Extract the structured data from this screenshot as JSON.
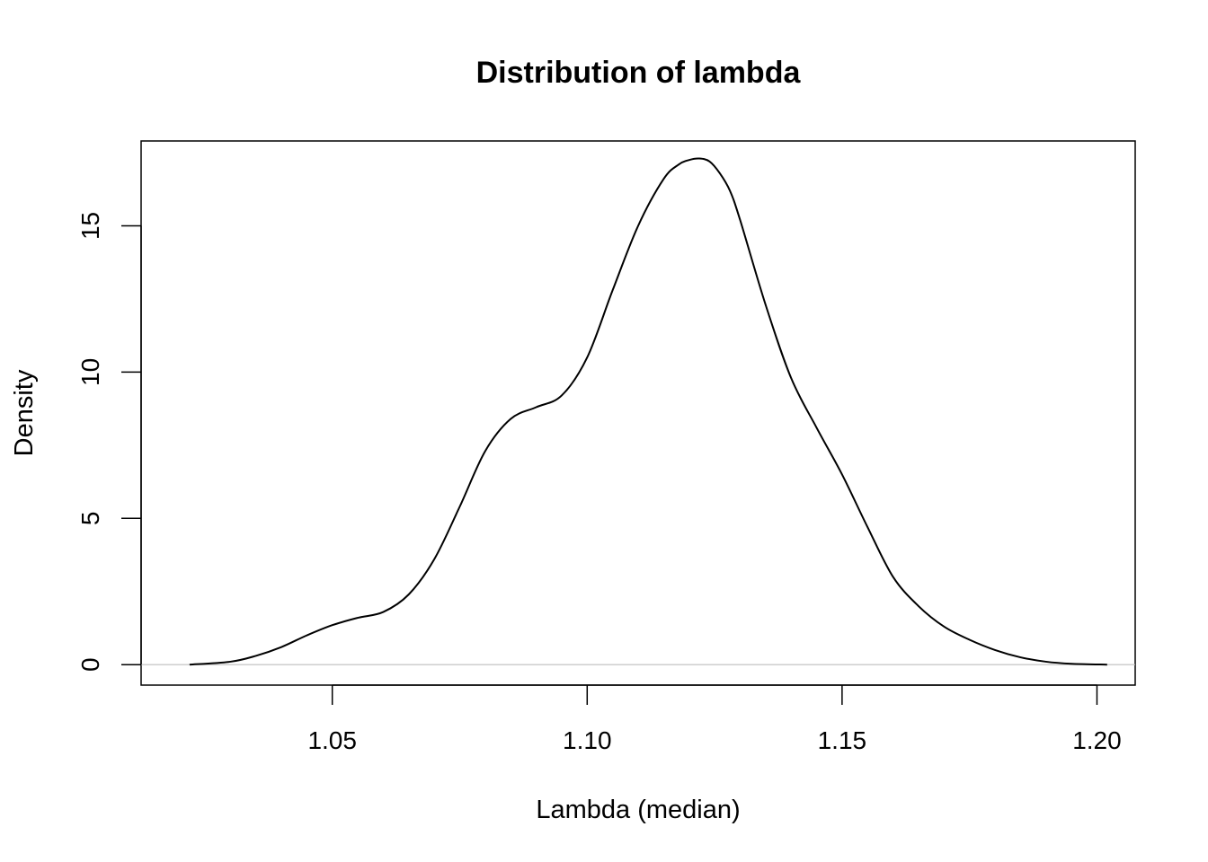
{
  "chart_data": {
    "type": "line",
    "title": "Distribution of lambda",
    "xlabel": "Lambda (median)",
    "ylabel": "Density",
    "xlim": [
      1.0125,
      1.2075
    ],
    "ylim": [
      -0.7,
      17.9
    ],
    "x_ticks": [
      1.05,
      1.1,
      1.15,
      1.2
    ],
    "x_tick_labels": [
      "1.05",
      "1.10",
      "1.15",
      "1.20"
    ],
    "y_ticks": [
      0,
      5,
      10,
      15
    ],
    "y_tick_labels": [
      "0",
      "5",
      "10",
      "15"
    ],
    "grid": false,
    "legend": "none",
    "baseline": 0,
    "series": [
      {
        "x": [
          1.022,
          1.03,
          1.035,
          1.04,
          1.045,
          1.05,
          1.055,
          1.06,
          1.065,
          1.07,
          1.075,
          1.08,
          1.085,
          1.09,
          1.095,
          1.1,
          1.105,
          1.11,
          1.115,
          1.118,
          1.12,
          1.122,
          1.124,
          1.126,
          1.128,
          1.13,
          1.135,
          1.14,
          1.145,
          1.15,
          1.155,
          1.16,
          1.165,
          1.17,
          1.175,
          1.18,
          1.185,
          1.19,
          1.195,
          1.202
        ],
        "y": [
          0.0,
          0.1,
          0.3,
          0.6,
          1.0,
          1.35,
          1.6,
          1.8,
          2.4,
          3.6,
          5.4,
          7.3,
          8.4,
          8.8,
          9.2,
          10.5,
          12.8,
          15.0,
          16.6,
          17.1,
          17.25,
          17.3,
          17.2,
          16.8,
          16.2,
          15.2,
          12.3,
          9.8,
          8.1,
          6.5,
          4.7,
          3.0,
          2.0,
          1.3,
          0.85,
          0.5,
          0.25,
          0.1,
          0.03,
          0.0
        ],
        "color": "#000000"
      }
    ]
  }
}
